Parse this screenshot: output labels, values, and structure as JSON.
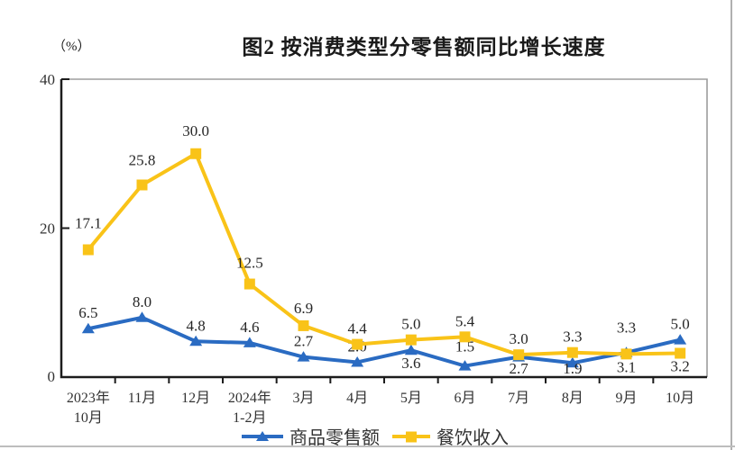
{
  "page": {
    "title": "图2  按消费类型分零售额同比增长速度",
    "unit_label": "（%）"
  },
  "colors": {
    "axis": "#1c1c1c",
    "plot_border": "#9d9d9d",
    "data_label": "#262626",
    "tick_label": "#333333",
    "goods_blue": "#2A6BC2",
    "catering_yellow": "#F9C318"
  },
  "chart_data": {
    "type": "line",
    "title": "图2  按消费类型分零售额同比增长速度",
    "unit": "%",
    "ylim": [
      0,
      40
    ],
    "yticks": [
      0,
      20,
      40
    ],
    "grid": false,
    "legend_position": "bottom",
    "categories": [
      [
        "2023年",
        "10月"
      ],
      [
        "11月"
      ],
      [
        "12月"
      ],
      [
        "2024年",
        "1-2月"
      ],
      [
        "3月"
      ],
      [
        "4月"
      ],
      [
        "5月"
      ],
      [
        "6月"
      ],
      [
        "7月"
      ],
      [
        "8月"
      ],
      [
        "9月"
      ],
      [
        "10月"
      ]
    ],
    "series": [
      {
        "name": "商品零售额",
        "color": "#2A6BC2",
        "marker": "triangle",
        "values": [
          6.5,
          8.0,
          4.8,
          4.6,
          2.7,
          2.0,
          3.6,
          1.5,
          2.7,
          1.9,
          3.3,
          5.0
        ],
        "labels": [
          "6.5",
          "8.0",
          "4.8",
          "4.6",
          "2.7",
          "2.0",
          "3.6",
          "1.5",
          "2.7",
          "1.9",
          "3.3",
          "5.0"
        ],
        "label_pos": [
          "above",
          "above",
          "above",
          "above",
          "above",
          "above",
          "below",
          "above",
          "below",
          "below",
          "above",
          "above"
        ],
        "label_dy": [
          0,
          0,
          0,
          0,
          0,
          0,
          0,
          -4,
          0,
          0,
          -10,
          0
        ]
      },
      {
        "name": "餐饮收入",
        "color": "#F9C318",
        "marker": "square",
        "values": [
          17.1,
          25.8,
          30.0,
          12.5,
          6.9,
          4.4,
          5.0,
          5.4,
          3.0,
          3.3,
          3.1,
          3.2
        ],
        "labels": [
          "17.1",
          "25.8",
          "30.0",
          "12.5",
          "6.9",
          "4.4",
          "5.0",
          "5.4",
          "3.0",
          "3.3",
          "3.1",
          "3.2"
        ],
        "label_pos": [
          "above",
          "above",
          "above",
          "above",
          "above",
          "above",
          "above",
          "above",
          "above",
          "above",
          "below",
          "below"
        ],
        "label_dy": [
          -12,
          -10,
          -8,
          -6,
          -2,
          0,
          0,
          0,
          0,
          0,
          0,
          0
        ]
      }
    ]
  }
}
